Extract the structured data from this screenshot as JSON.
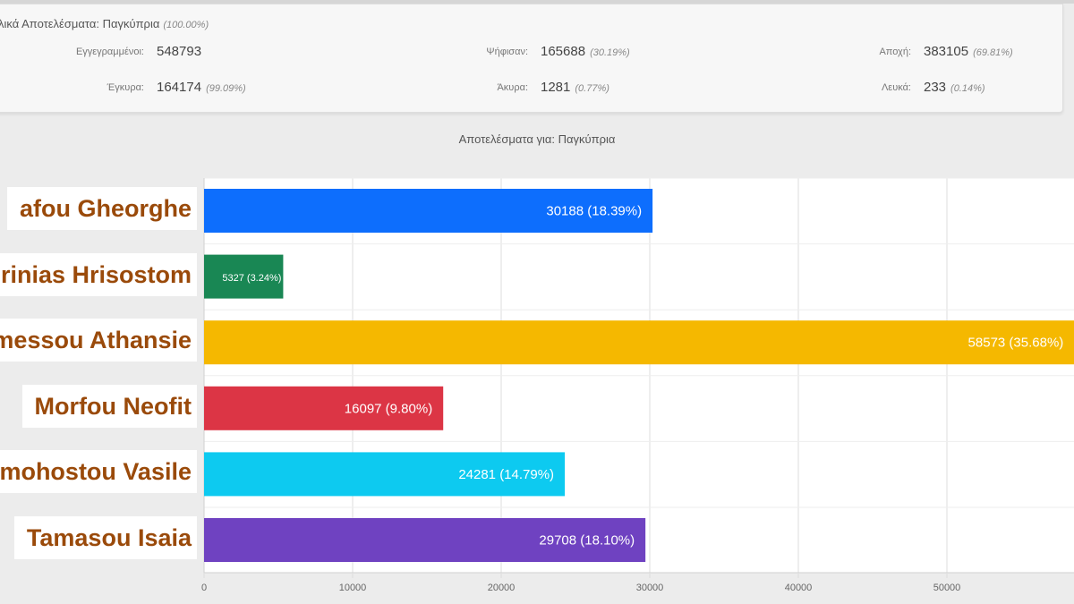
{
  "summary": {
    "title": "ολικά Αποτελέσματα: Παγκύπρια",
    "title_pct": "(100.00%)",
    "stats": [
      {
        "label": "Εγγεγραμμένοι:",
        "value": "548793",
        "pct": ""
      },
      {
        "label": "Ψήφισαν:",
        "value": "165688",
        "pct": "(30.19%)"
      },
      {
        "label": "Αποχή:",
        "value": "383105",
        "pct": "(69.81%)"
      },
      {
        "label": "Έγκυρα:",
        "value": "164174",
        "pct": "(99.09%)"
      },
      {
        "label": "Άκυρα:",
        "value": "1281",
        "pct": "(0.77%)"
      },
      {
        "label": "Λευκά:",
        "value": "233",
        "pct": "(0.14%)"
      }
    ]
  },
  "chart_data": {
    "type": "bar",
    "orientation": "horizontal",
    "title": "Αποτελέσματα για: Παγκύπρια",
    "categories": [
      "Pafou Gheorghe",
      "Kirinias Hrisostom",
      "Lemessou Athansie",
      "Morfou Neofit",
      "Tamohostou Vasile",
      "Tamasou Isaia"
    ],
    "category_labels_visible": [
      "afou Gheorghe",
      "rinias Hrisostom",
      "messou Athansie",
      "Morfou Neofit",
      "mohostou Vasile",
      "Tamasou Isaia"
    ],
    "values": [
      30188,
      5327,
      58573,
      16097,
      24281,
      29708
    ],
    "data_labels": [
      "30188 (18.39%)",
      "5327 (3.24%)",
      "58573 (35.68%)",
      "16097 (9.80%)",
      "24281 (14.79%)",
      "29708 (18.10%)"
    ],
    "colors": [
      "#0d6efd",
      "#198754",
      "#f5b800",
      "#dc3545",
      "#0dcaf0",
      "#6f42c1"
    ],
    "x_ticks": [
      "0",
      "10000",
      "20000",
      "30000",
      "40000",
      "50000"
    ],
    "xlim": [
      0,
      58573
    ],
    "grid": true,
    "legend": "none"
  }
}
